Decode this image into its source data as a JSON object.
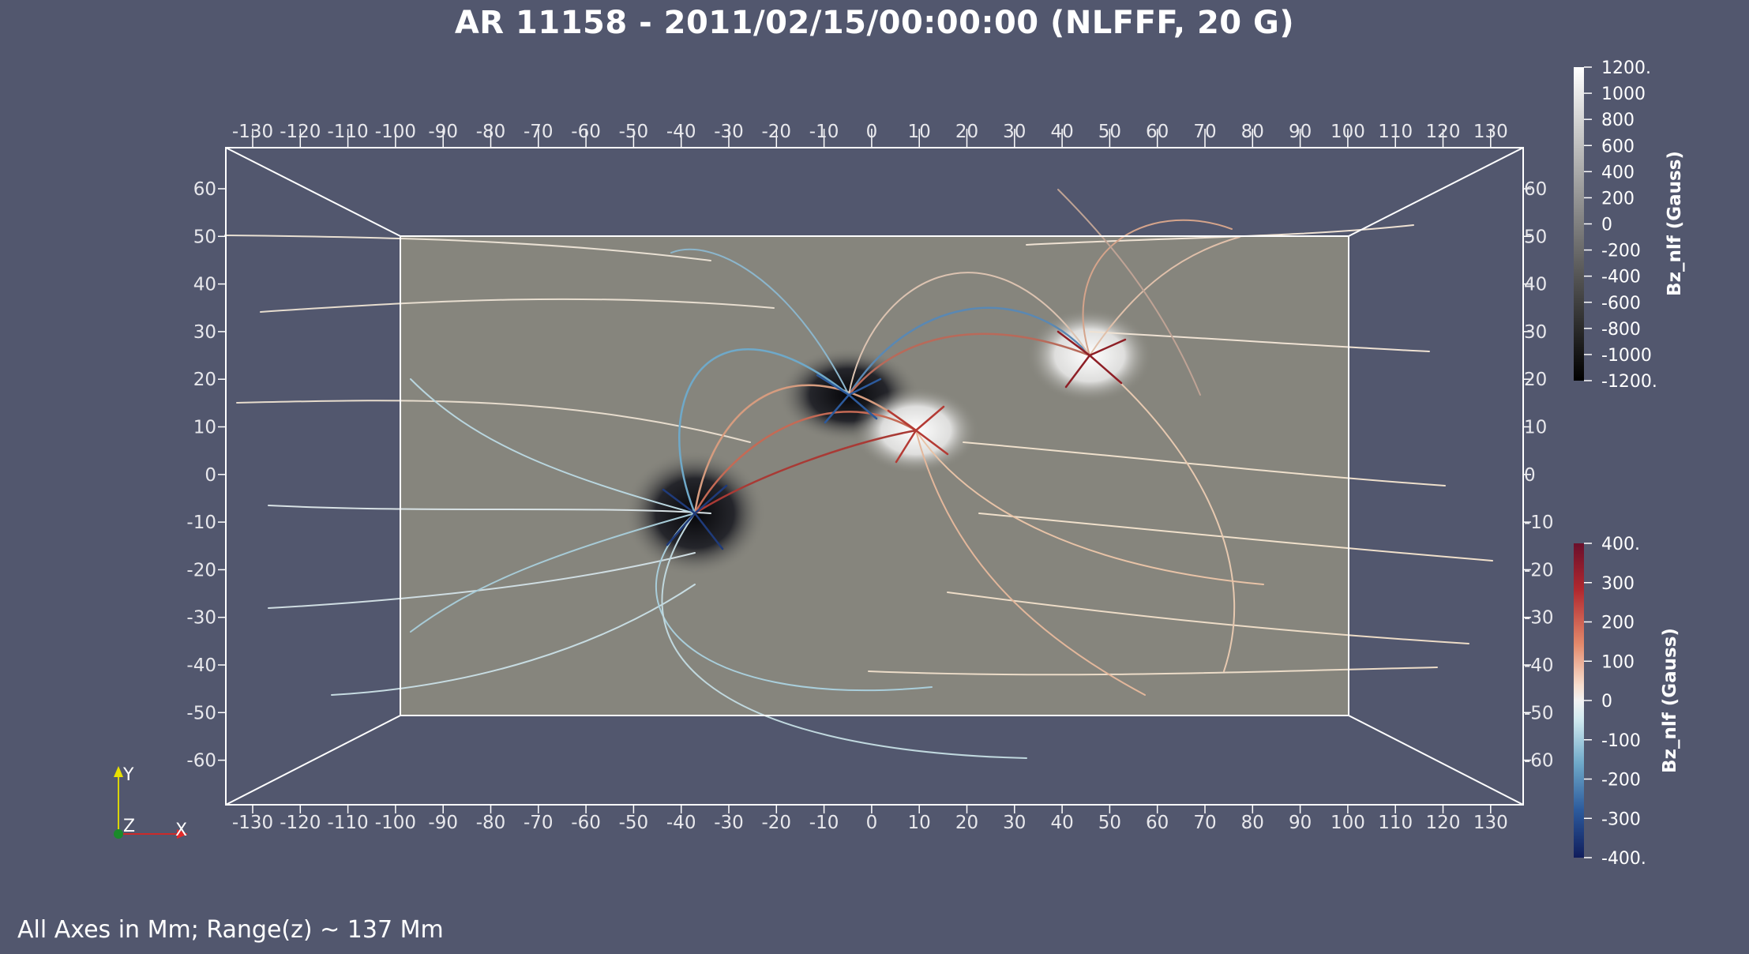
{
  "title": "AR 11158 - 2011/02/15/00:00:00 (NLFFF, 20 G)",
  "footer": "All Axes in Mm; Range(z) ~ 137 Mm",
  "axes": {
    "x_ticks": [
      "-130",
      "-120",
      "-110",
      "-100",
      "-90",
      "-80",
      "-70",
      "-60",
      "-50",
      "-40",
      "-30",
      "-20",
      "-10",
      "0",
      "10",
      "20",
      "30",
      "40",
      "50",
      "60",
      "70",
      "80",
      "90",
      "100",
      "110",
      "120",
      "130"
    ],
    "y_ticks": [
      "60",
      "50",
      "40",
      "30",
      "20",
      "10",
      "0",
      "-10",
      "-20",
      "-30",
      "-40",
      "-50",
      "-60"
    ]
  },
  "colorbar_top": {
    "title": "Bz_nlf (Gauss)",
    "labels": [
      "1200.",
      "1000",
      "800",
      "600",
      "400",
      "200",
      "0",
      "-200",
      "-400",
      "-600",
      "-800",
      "-1000",
      "-1200."
    ],
    "colors": [
      "#ffffff",
      "#000000"
    ]
  },
  "colorbar_bottom": {
    "title": "Bz_nlf (Gauss)",
    "labels": [
      "400.",
      "300",
      "200",
      "100",
      "0",
      "-100",
      "-200",
      "-300",
      "-400."
    ],
    "colors": [
      "#6b0f2b",
      "#b2292f",
      "#e3896b",
      "#f7ddcd",
      "#f2f2f2",
      "#d2eaf0",
      "#6fa9c9",
      "#2c5a9c",
      "#101d5c"
    ]
  },
  "orientation": {
    "y": "Y",
    "z": "Z",
    "x": "X"
  },
  "colors": {
    "background": "#52576e",
    "magnetogram": "#86857d",
    "box": "#ffffff"
  }
}
